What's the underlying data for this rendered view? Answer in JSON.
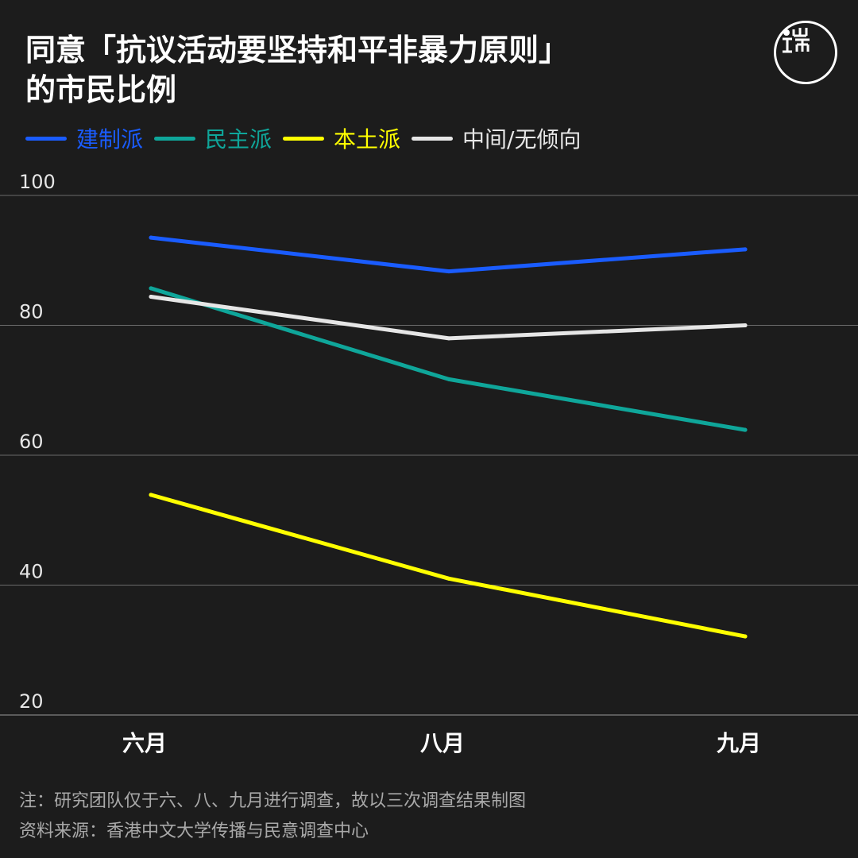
{
  "header": {
    "title_line1": "同意「抗议活动要坚持和平非暴力原则」",
    "title_line2": "的市民比例"
  },
  "logo": {
    "icon": "initium-logo-icon"
  },
  "footer": {
    "note": "注：研究团队仅于六、八、九月进行调查，故以三次调查结果制图",
    "source": "资料来源：香港中文大学传播与民意调查中心"
  },
  "chart_data": {
    "type": "line",
    "title": "同意「抗议活动要坚持和平非暴力原则」的市民比例",
    "categories": [
      "六月",
      "八月",
      "九月"
    ],
    "series": [
      {
        "name": "建制派",
        "color": "#1a5cff",
        "values": [
          93.5,
          88.3,
          91.7
        ]
      },
      {
        "name": "民主派",
        "color": "#0fa69a",
        "values": [
          85.7,
          71.7,
          63.9
        ]
      },
      {
        "name": "本土派",
        "color": "#ffff00",
        "values": [
          53.9,
          41.0,
          32.1
        ]
      },
      {
        "name": "中间/无倾向",
        "color": "#e6e6e6",
        "values": [
          84.4,
          78.0,
          80.0
        ]
      }
    ],
    "ylim": [
      20,
      100
    ],
    "yticks": [
      20,
      40,
      60,
      80,
      100
    ],
    "grid": true,
    "legend_position": "top-left"
  }
}
